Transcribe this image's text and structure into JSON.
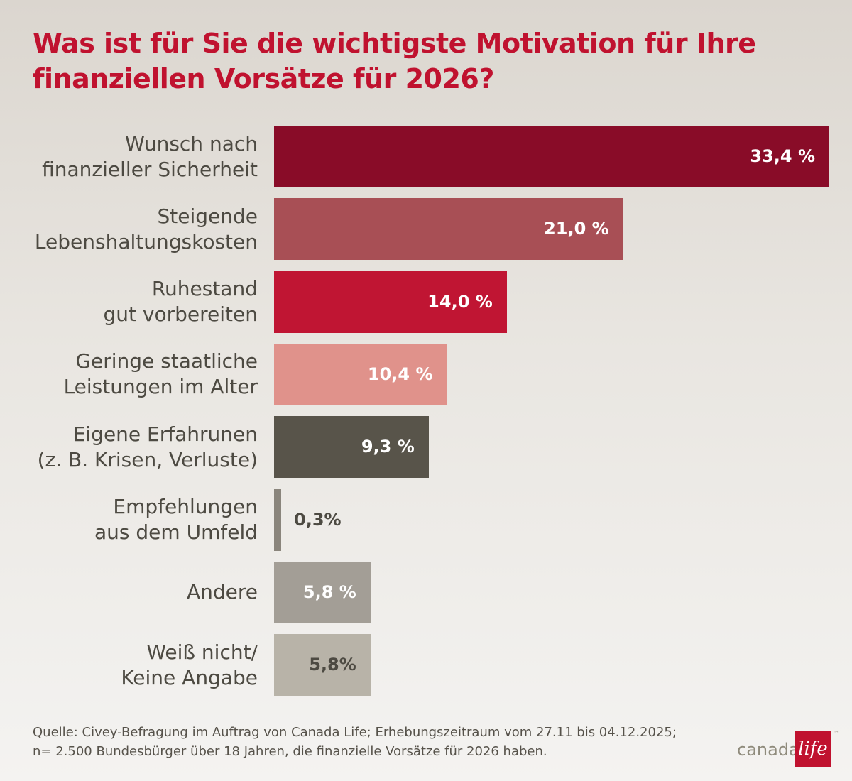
{
  "chart_data": {
    "type": "bar",
    "orientation": "horizontal",
    "title": "Was ist für Sie die wichtigste Motivation für Ihre finanziellen Vorsätze für 2026?",
    "categories": [
      "Wunsch nach\nfinanzieller Sicherheit",
      "Steigende\nLebenshaltungskosten",
      "Ruhestand\ngut vorbereiten",
      "Geringe staatliche\nLeistungen im Alter",
      "Eigene Erfahrunen\n(z. B. Krisen, Verluste)",
      "Empfehlungen\naus dem Umfeld",
      "Andere",
      "Weiß nicht/\nKeine Angabe"
    ],
    "values": [
      33.4,
      21.0,
      14.0,
      10.4,
      9.3,
      0.3,
      5.8,
      5.8
    ],
    "data_labels": [
      "33,4 %",
      "21,0 %",
      "14,0 %",
      "10,4 %",
      "9,3 %",
      "0,3%",
      "5,8 %",
      "5,8%"
    ],
    "colors": [
      "#890c28",
      "#a84f55",
      "#c01533",
      "#e0928b",
      "#58544a",
      "#8a857c",
      "#a39e96",
      "#b8b3a8"
    ],
    "label_colors": [
      "#ffffff",
      "#ffffff",
      "#ffffff",
      "#ffffff",
      "#ffffff",
      "#4d4a42",
      "#ffffff",
      "#4d4a42"
    ],
    "xlim": [
      0,
      33.4
    ],
    "grid": false
  },
  "footer": {
    "line1": "Quelle: Civey-Befragung im Auftrag von Canada Life; Erhebungszeitraum vom 27.11 bis 04.12.2025;",
    "line2": "n= 2.500 Bundesbürger über 18 Jahren, die finanzielle Vorsätze für 2026 haben."
  },
  "logo": {
    "word": "canada",
    "mark": "life",
    "tm": "™",
    "color": "#c0122f"
  }
}
